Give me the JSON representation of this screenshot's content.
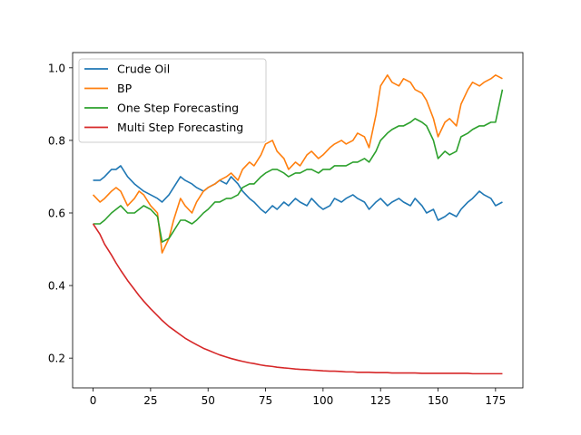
{
  "chart_data": {
    "type": "line",
    "title": "",
    "xlabel": "",
    "ylabel": "",
    "xlim": [
      -8.9,
      186.9
    ],
    "ylim": [
      0.118,
      1.042
    ],
    "xticks": [
      0,
      25,
      50,
      75,
      100,
      125,
      150,
      175
    ],
    "yticks": [
      0.2,
      0.4,
      0.6,
      0.8,
      1.0
    ],
    "xtick_labels": [
      "0",
      "25",
      "50",
      "75",
      "100",
      "125",
      "150",
      "175"
    ],
    "ytick_labels": [
      "0.2",
      "0.4",
      "0.6",
      "0.8",
      "1.0"
    ],
    "grid": false,
    "legend_position": "top-left",
    "series": [
      {
        "name": "Crude Oil",
        "color": "#1f77b4",
        "x": [
          0,
          3,
          5,
          8,
          10,
          12,
          15,
          18,
          20,
          22,
          25,
          28,
          30,
          33,
          35,
          38,
          40,
          43,
          45,
          48,
          50,
          53,
          55,
          58,
          60,
          63,
          65,
          68,
          70,
          73,
          75,
          78,
          80,
          83,
          85,
          88,
          90,
          93,
          95,
          98,
          100,
          103,
          105,
          108,
          110,
          113,
          115,
          118,
          120,
          123,
          125,
          128,
          130,
          133,
          135,
          138,
          140,
          143,
          145,
          148,
          150,
          153,
          155,
          158,
          160,
          163,
          165,
          168,
          170,
          173,
          175,
          178
        ],
        "values": [
          0.69,
          0.69,
          0.7,
          0.72,
          0.72,
          0.73,
          0.7,
          0.68,
          0.67,
          0.66,
          0.65,
          0.64,
          0.63,
          0.65,
          0.67,
          0.7,
          0.69,
          0.68,
          0.67,
          0.66,
          0.67,
          0.68,
          0.69,
          0.68,
          0.7,
          0.68,
          0.66,
          0.64,
          0.63,
          0.61,
          0.6,
          0.62,
          0.61,
          0.63,
          0.62,
          0.64,
          0.63,
          0.62,
          0.64,
          0.62,
          0.61,
          0.62,
          0.64,
          0.63,
          0.64,
          0.65,
          0.64,
          0.63,
          0.61,
          0.63,
          0.64,
          0.62,
          0.63,
          0.64,
          0.63,
          0.62,
          0.64,
          0.62,
          0.6,
          0.61,
          0.58,
          0.59,
          0.6,
          0.59,
          0.61,
          0.63,
          0.64,
          0.66,
          0.65,
          0.64,
          0.62,
          0.63
        ]
      },
      {
        "name": "BP",
        "color": "#ff7f0e",
        "x": [
          0,
          3,
          5,
          8,
          10,
          12,
          15,
          18,
          20,
          22,
          25,
          28,
          30,
          33,
          35,
          38,
          40,
          43,
          45,
          48,
          50,
          53,
          55,
          58,
          60,
          63,
          65,
          68,
          70,
          73,
          75,
          78,
          80,
          83,
          85,
          88,
          90,
          93,
          95,
          98,
          100,
          103,
          105,
          108,
          110,
          113,
          115,
          118,
          120,
          123,
          125,
          128,
          130,
          133,
          135,
          138,
          140,
          143,
          145,
          148,
          150,
          153,
          155,
          158,
          160,
          163,
          165,
          168,
          170,
          173,
          175,
          178
        ],
        "values": [
          0.65,
          0.63,
          0.64,
          0.66,
          0.67,
          0.66,
          0.62,
          0.64,
          0.66,
          0.65,
          0.62,
          0.6,
          0.49,
          0.53,
          0.58,
          0.64,
          0.62,
          0.6,
          0.63,
          0.66,
          0.67,
          0.68,
          0.69,
          0.7,
          0.71,
          0.69,
          0.72,
          0.74,
          0.73,
          0.76,
          0.79,
          0.8,
          0.77,
          0.75,
          0.72,
          0.74,
          0.73,
          0.76,
          0.77,
          0.75,
          0.76,
          0.78,
          0.79,
          0.8,
          0.79,
          0.8,
          0.82,
          0.81,
          0.78,
          0.87,
          0.95,
          0.98,
          0.96,
          0.95,
          0.97,
          0.96,
          0.94,
          0.93,
          0.91,
          0.86,
          0.81,
          0.85,
          0.86,
          0.84,
          0.9,
          0.94,
          0.96,
          0.95,
          0.96,
          0.97,
          0.98,
          0.97
        ]
      },
      {
        "name": "One Step Forecasting",
        "color": "#2ca02c",
        "x": [
          0,
          3,
          5,
          8,
          10,
          12,
          15,
          18,
          20,
          22,
          25,
          28,
          30,
          33,
          35,
          38,
          40,
          43,
          45,
          48,
          50,
          53,
          55,
          58,
          60,
          63,
          65,
          68,
          70,
          73,
          75,
          78,
          80,
          83,
          85,
          88,
          90,
          93,
          95,
          98,
          100,
          103,
          105,
          108,
          110,
          113,
          115,
          118,
          120,
          123,
          125,
          128,
          130,
          133,
          135,
          138,
          140,
          143,
          145,
          148,
          150,
          153,
          155,
          158,
          160,
          163,
          165,
          168,
          170,
          173,
          175,
          178
        ],
        "values": [
          0.57,
          0.57,
          0.58,
          0.6,
          0.61,
          0.62,
          0.6,
          0.6,
          0.61,
          0.62,
          0.61,
          0.59,
          0.52,
          0.53,
          0.55,
          0.58,
          0.58,
          0.57,
          0.58,
          0.6,
          0.61,
          0.63,
          0.63,
          0.64,
          0.64,
          0.65,
          0.67,
          0.68,
          0.68,
          0.7,
          0.71,
          0.72,
          0.72,
          0.71,
          0.7,
          0.71,
          0.71,
          0.72,
          0.72,
          0.71,
          0.72,
          0.72,
          0.73,
          0.73,
          0.73,
          0.74,
          0.74,
          0.75,
          0.74,
          0.77,
          0.8,
          0.82,
          0.83,
          0.84,
          0.84,
          0.85,
          0.86,
          0.85,
          0.84,
          0.8,
          0.75,
          0.77,
          0.76,
          0.77,
          0.81,
          0.82,
          0.83,
          0.84,
          0.84,
          0.85,
          0.85,
          0.94
        ]
      },
      {
        "name": "Multi Step Forecasting",
        "color": "#d62728",
        "x": [
          0,
          3,
          5,
          8,
          10,
          12,
          15,
          18,
          20,
          22,
          25,
          28,
          30,
          33,
          35,
          38,
          40,
          43,
          45,
          48,
          50,
          53,
          55,
          58,
          60,
          63,
          65,
          68,
          70,
          73,
          75,
          78,
          80,
          83,
          85,
          88,
          90,
          93,
          95,
          98,
          100,
          103,
          105,
          108,
          110,
          113,
          115,
          118,
          120,
          123,
          125,
          128,
          130,
          133,
          135,
          138,
          140,
          143,
          145,
          148,
          150,
          153,
          155,
          158,
          160,
          163,
          165,
          168,
          170,
          173,
          175,
          178
        ],
        "values": [
          0.57,
          0.541,
          0.514,
          0.484,
          0.462,
          0.442,
          0.414,
          0.389,
          0.372,
          0.357,
          0.336,
          0.317,
          0.304,
          0.287,
          0.278,
          0.264,
          0.255,
          0.244,
          0.237,
          0.227,
          0.222,
          0.214,
          0.209,
          0.203,
          0.199,
          0.194,
          0.191,
          0.187,
          0.185,
          0.181,
          0.179,
          0.177,
          0.175,
          0.173,
          0.172,
          0.17,
          0.169,
          0.168,
          0.167,
          0.166,
          0.165,
          0.164,
          0.164,
          0.163,
          0.162,
          0.162,
          0.161,
          0.161,
          0.161,
          0.16,
          0.16,
          0.16,
          0.159,
          0.159,
          0.159,
          0.159,
          0.159,
          0.158,
          0.158,
          0.158,
          0.158,
          0.158,
          0.158,
          0.158,
          0.158,
          0.158,
          0.157,
          0.157,
          0.157,
          0.157,
          0.157,
          0.157
        ]
      }
    ]
  }
}
